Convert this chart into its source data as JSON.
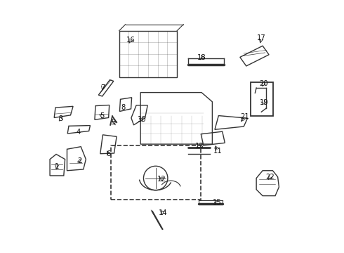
{
  "bg_color": "#ffffff",
  "line_color": "#333333",
  "text_color": "#111111",
  "fig_width": 4.9,
  "fig_height": 3.6,
  "dpi": 100
}
